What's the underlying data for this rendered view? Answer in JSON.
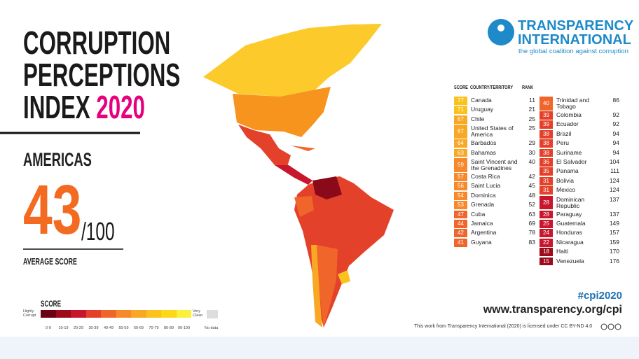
{
  "header": {
    "title_lines": [
      "CORRUPTION",
      "PERCEPTIONS",
      "INDEX"
    ],
    "year": "2020"
  },
  "region": "AMERICAS",
  "average": {
    "score": "43",
    "out_of": "/100",
    "label": "AVERAGE SCORE"
  },
  "logo": {
    "line1": "TRANSPARENCY",
    "line2": "INTERNATIONAL",
    "tagline": "the global coalition against corruption"
  },
  "table": {
    "headers": [
      "SCORE",
      "COUNTRY/TERRITORY",
      "RANK"
    ],
    "left": [
      [
        77,
        "Canada",
        11
      ],
      [
        71,
        "Uruguay",
        21
      ],
      [
        67,
        "Chile",
        25
      ],
      [
        67,
        "United States of America",
        25
      ],
      [
        64,
        "Barbados",
        29
      ],
      [
        63,
        "Bahamas",
        30
      ],
      [
        59,
        "Saint Vincent and the Grenadines",
        40
      ],
      [
        57,
        "Costa Rica",
        42
      ],
      [
        56,
        "Saint Lucia",
        45
      ],
      [
        54,
        "Dominica",
        48
      ],
      [
        53,
        "Grenada",
        52
      ],
      [
        47,
        "Cuba",
        63
      ],
      [
        44,
        "Jamaica",
        69
      ],
      [
        42,
        "Argentina",
        78
      ],
      [
        41,
        "Guyana",
        83
      ]
    ],
    "right": [
      [
        40,
        "Trinidad and Tobago",
        86
      ],
      [
        39,
        "Colombia",
        92
      ],
      [
        39,
        "Ecuador",
        92
      ],
      [
        38,
        "Brazil",
        94
      ],
      [
        38,
        "Peru",
        94
      ],
      [
        38,
        "Suriname",
        94
      ],
      [
        36,
        "El Salvador",
        104
      ],
      [
        35,
        "Panama",
        111
      ],
      [
        31,
        "Bolivia",
        124
      ],
      [
        31,
        "Mexico",
        124
      ],
      [
        28,
        "Dominican Republic",
        137
      ],
      [
        28,
        "Paraguay",
        137
      ],
      [
        25,
        "Guatemala",
        149
      ],
      [
        24,
        "Honduras",
        157
      ],
      [
        22,
        "Nicaragua",
        159
      ],
      [
        18,
        "Haiti",
        170
      ],
      [
        15,
        "Venezuela",
        176
      ]
    ]
  },
  "legend": {
    "title": "SCORE",
    "low": "Highly Corrupt",
    "high": "Very Clean",
    "no_data": "No data",
    "bins": [
      {
        "label": "0-9",
        "color": "#6e0016"
      },
      {
        "label": "10-19",
        "color": "#9c0a1c"
      },
      {
        "label": "20-29",
        "color": "#c8162c"
      },
      {
        "label": "30-39",
        "color": "#e4412a"
      },
      {
        "label": "40-49",
        "color": "#f0662a"
      },
      {
        "label": "50-59",
        "color": "#f6892a"
      },
      {
        "label": "60-69",
        "color": "#f9a825"
      },
      {
        "label": "70-79",
        "color": "#fbc21e"
      },
      {
        "label": "80-89",
        "color": "#fcd819"
      },
      {
        "label": "90-100",
        "color": "#fdf03c"
      }
    ]
  },
  "footer": {
    "hashtag": "#cpi2020",
    "url": "www.transparency.org/cpi",
    "license": "This work from Transparency International (2020) is licensed under CC BY-ND 4.0"
  }
}
